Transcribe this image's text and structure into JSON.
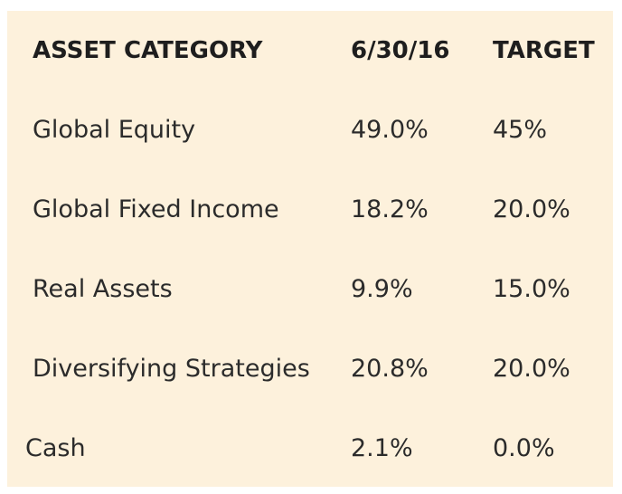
{
  "table": {
    "headers": {
      "category": "ASSET CATEGORY",
      "date": "6/30/16",
      "target": "TARGET"
    },
    "rows": [
      {
        "category": "Global Equity",
        "date_value": "49.0%",
        "target_value": "45%"
      },
      {
        "category": "Global Fixed Income",
        "date_value": "18.2%",
        "target_value": "20.0%"
      },
      {
        "category": "Real Assets",
        "date_value": "9.9%",
        "target_value": "15.0%"
      },
      {
        "category": "Diversifying Strategies",
        "date_value": "20.8%",
        "target_value": "20.0%"
      },
      {
        "category": "Cash",
        "date_value": "2.1%",
        "target_value": "0.0%"
      }
    ]
  }
}
